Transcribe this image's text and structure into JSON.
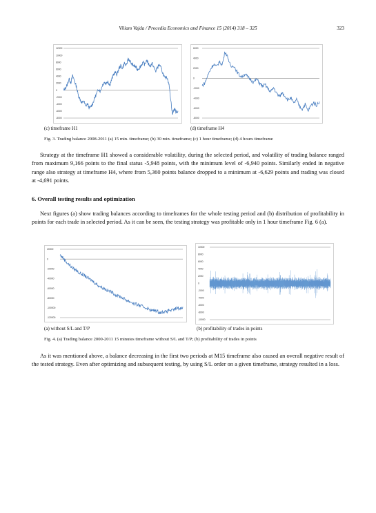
{
  "header": {
    "running": "Viliam Vajda / Procedia Economics and Finance 15 (2014) 318 – 325",
    "page_number": "323"
  },
  "fig3": {
    "sub_c": "(c) timeframe H1",
    "sub_d": "(d) timeframe H4",
    "caption": "Fig. 3. Trading balance 2008-2011 (a) 15 min. timeframe; (b) 30 min. timeframe; (c) 1 hour timeframe; (d) 4 hours timeframe"
  },
  "para1": "Strategy at the timeframe H1 showed a considerable volatility, during the selected period, and volatility of trading balance ranged from maximum 9,166 points to the final status -5,948 points, with the minimum level of -6,940 points. Similarly ended in negative range also strategy at timeframe H4, where from 5,360 points balance dropped to a minimum at -6,629 points and trading was closed at -4,691 points.",
  "section_heading": "6. Overall testing results and optimization",
  "para2": "Next figures (a) show trading balances according to timeframes for the whole testing period and (b) distribution of profitability in points for each trade in selected period. As it can be seen, the testing strategy was profitable only in 1 hour timeframe Fig. 6 (a).",
  "fig4": {
    "sub_a": "(a) without S/L and T/P",
    "sub_b": "(b) profitability of trades in points",
    "caption": "Fig. 4. (a) Trading balance 2000-2011 15 minutes timeframe without S/L and T/P; (b) profitability of trades in points"
  },
  "para3": "As it was mentioned above, a balance decreasing in the first two periods at M15 timeframe also caused an overall negative result of the tested strategy. Even after optimizing and subsequent testing, by using S/L order on a given timeframe, strategy resulted in a loss.",
  "chart_data": [
    {
      "type": "line",
      "name": "H1",
      "ylim": [
        -8000,
        12000
      ],
      "yticks": [
        "12000",
        "10000",
        "8000",
        "6000",
        "4000",
        "2000",
        "0",
        "-2000",
        "-4000",
        "-6000",
        "-8000"
      ],
      "line_color": "#4a7fc1",
      "values": [
        -200,
        600,
        1500,
        3200,
        2200,
        4100,
        2600,
        1000,
        -1400,
        -2600,
        -3800,
        -3100,
        -4600,
        -3900,
        -5200,
        -4600,
        -3600,
        -2100,
        -900,
        300,
        -300,
        1400,
        2300,
        1900,
        2700,
        1400,
        2900,
        4400,
        5100,
        4500,
        6200,
        7000,
        6300,
        7800,
        6900,
        9166,
        8300,
        7400,
        7100,
        6700,
        5900,
        6400,
        7000,
        7900,
        7300,
        8600,
        7600,
        6900,
        7700,
        6400,
        5400,
        6700,
        7300,
        6100,
        4600,
        3300,
        3800,
        2100,
        -2300,
        -6940,
        -5200,
        -6400,
        -5948
      ]
    },
    {
      "type": "line",
      "name": "H4",
      "ylim": [
        -8000,
        6000
      ],
      "yticks": [
        "6000",
        "4000",
        "2000",
        "0",
        "-2000",
        "-4000",
        "-6000",
        "-8000"
      ],
      "line_color": "#4a7fc1",
      "values": [
        -1500,
        -900,
        600,
        1900,
        2800,
        2300,
        3300,
        2700,
        5360,
        4200,
        2200,
        2600,
        1500,
        600,
        300,
        900,
        200,
        -300,
        -800,
        -200,
        -900,
        -1600,
        -1300,
        -2100,
        -2700,
        -1900,
        -3000,
        -3700,
        -2900,
        -3600,
        -4400,
        -3900,
        -5100,
        -4300,
        -5600,
        -6200,
        -5200,
        -6629,
        -5500,
        -4900,
        -5400,
        -4691
      ]
    },
    {
      "type": "line",
      "name": "M15 without S/L and T/P",
      "ylim": [
        -120000,
        20000
      ],
      "yticks": [
        "20000",
        "0",
        "-20000",
        "-40000",
        "-60000",
        "-80000",
        "-100000",
        "-120000"
      ],
      "line_color": "#4a7fc1",
      "values": [
        8000,
        3000,
        -4000,
        -10000,
        -15000,
        -20000,
        -23000,
        -28000,
        -31000,
        -34000,
        -38000,
        -42000,
        -45000,
        -50000,
        -54000,
        -57000,
        -60000,
        -63000,
        -66000,
        -68000,
        -72000,
        -75000,
        -77000,
        -80000,
        -83000,
        -86000,
        -88000,
        -91000,
        -93000,
        -95000,
        -97000,
        -99000,
        -101000,
        -104000,
        -106000,
        -105000,
        -108000,
        -110000,
        -107000,
        -109000,
        -104000,
        -106000,
        -103000,
        -100000,
        -102000,
        -98000
      ]
    },
    {
      "type": "area",
      "name": "profitability of trades in points",
      "ylim": [
        -10000,
        10000
      ],
      "yticks": [
        "10000",
        "8000",
        "6000",
        "4000",
        "2000",
        "0",
        "-2000",
        "-4000",
        "-6000",
        "-8000",
        "-10000"
      ],
      "line_color": "#3a7cc4"
    }
  ]
}
